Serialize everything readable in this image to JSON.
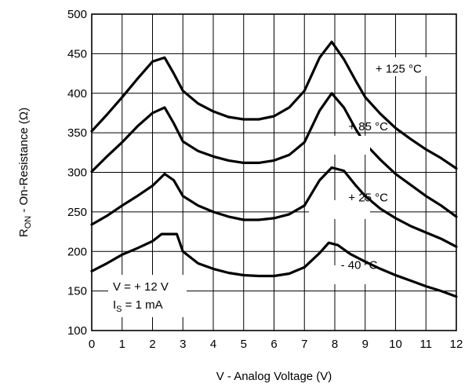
{
  "chart_data": {
    "type": "line",
    "title": "",
    "xlabel": "V - Analog Voltage (V)",
    "ylabel": {
      "main": "R",
      "sub": "ON",
      "rest": " - On-Resistance (Ω)"
    },
    "xlim": [
      0,
      12
    ],
    "ylim": [
      100,
      500
    ],
    "xticks": [
      0,
      1,
      2,
      3,
      4,
      5,
      6,
      7,
      8,
      9,
      10,
      11,
      12
    ],
    "yticks": [
      100,
      150,
      200,
      250,
      300,
      350,
      400,
      450,
      500
    ],
    "grid": true,
    "series": [
      {
        "name": "+ 125 °C",
        "x": [
          0,
          0.5,
          1,
          1.5,
          2,
          2.4,
          2.7,
          3,
          3.5,
          4,
          4.5,
          5,
          5.5,
          6,
          6.5,
          7,
          7.5,
          7.9,
          8.3,
          8.7,
          9,
          9.5,
          10,
          10.5,
          11,
          11.5,
          12
        ],
        "y": [
          352,
          373,
          395,
          418,
          440,
          445,
          425,
          403,
          387,
          377,
          370,
          367,
          367,
          371,
          382,
          403,
          445,
          465,
          443,
          415,
          395,
          374,
          356,
          342,
          329,
          318,
          305
        ]
      },
      {
        "name": "+ 85 °C",
        "x": [
          0,
          0.5,
          1,
          1.5,
          2,
          2.4,
          2.7,
          3,
          3.5,
          4,
          4.5,
          5,
          5.5,
          6,
          6.5,
          7,
          7.5,
          7.9,
          8.3,
          8.7,
          9,
          9.5,
          10,
          10.5,
          11,
          11.5,
          12
        ],
        "y": [
          301,
          320,
          338,
          358,
          375,
          382,
          362,
          339,
          327,
          320,
          315,
          312,
          312,
          315,
          322,
          338,
          378,
          400,
          382,
          354,
          336,
          316,
          298,
          284,
          270,
          258,
          244
        ]
      },
      {
        "name": "+ 25 °C",
        "x": [
          0,
          0.5,
          1,
          1.5,
          2,
          2.4,
          2.7,
          3,
          3.5,
          4,
          4.5,
          5,
          5.5,
          6,
          6.5,
          7,
          7.5,
          7.9,
          8.3,
          8.7,
          9,
          9.5,
          10,
          10.5,
          11,
          11.5,
          12
        ],
        "y": [
          234,
          245,
          258,
          270,
          283,
          298,
          290,
          270,
          258,
          250,
          244,
          240,
          240,
          242,
          247,
          258,
          290,
          306,
          302,
          283,
          270,
          254,
          242,
          232,
          224,
          216,
          206
        ]
      },
      {
        "name": "- 40 °C",
        "x": [
          0,
          0.5,
          1,
          1.5,
          2,
          2.3,
          2.8,
          3,
          3.5,
          4,
          4.5,
          5,
          5.5,
          6,
          6.5,
          7,
          7.5,
          7.8,
          8.1,
          8.5,
          9,
          9.5,
          10,
          10.5,
          11,
          11.5,
          12
        ],
        "y": [
          175,
          185,
          196,
          204,
          213,
          222,
          222,
          200,
          185,
          178,
          173,
          170,
          169,
          169,
          172,
          180,
          198,
          211,
          208,
          197,
          187,
          178,
          170,
          163,
          156,
          150,
          143
        ]
      }
    ],
    "annotations": {
      "cond_v": "V = + 12 V",
      "cond_is_main": "I",
      "cond_is_sub": "S",
      "cond_is_rest": " = 1 mA"
    }
  }
}
